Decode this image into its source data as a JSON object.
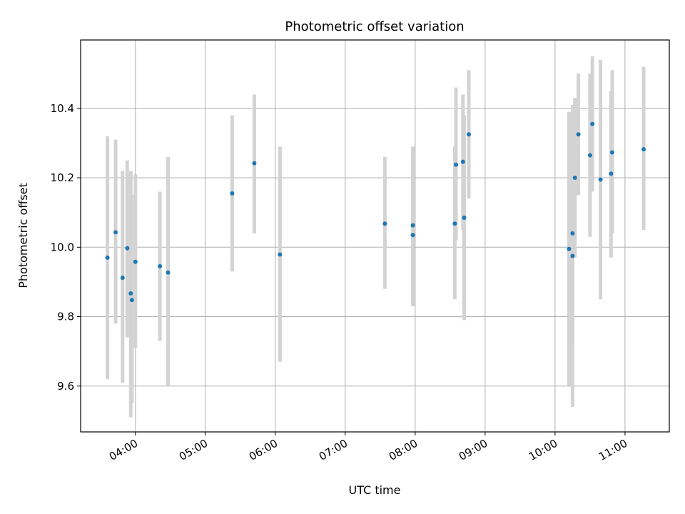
{
  "chart_data": {
    "type": "scatter",
    "title": "Photometric offset variation",
    "xlabel": "UTC time",
    "ylabel": "Photometric offset",
    "xlim": [
      "03:13",
      "11:38"
    ],
    "ylim": [
      9.468,
      10.597
    ],
    "x_ticks": [
      "04:00",
      "05:00",
      "06:00",
      "07:00",
      "08:00",
      "09:00",
      "10:00",
      "11:00"
    ],
    "y_ticks": [
      9.6,
      9.8,
      10.0,
      10.2,
      10.4
    ],
    "grid": true,
    "error_bar_color": "#d3d3d3",
    "marker_color": "#1f77b4",
    "points": [
      {
        "x": "03:36",
        "y": 9.97,
        "lo": 9.62,
        "hi": 10.32
      },
      {
        "x": "03:43",
        "y": 10.043,
        "lo": 9.78,
        "hi": 10.31
      },
      {
        "x": "03:49",
        "y": 9.912,
        "lo": 9.61,
        "hi": 10.22
      },
      {
        "x": "03:53",
        "y": 9.997,
        "lo": 9.74,
        "hi": 10.25
      },
      {
        "x": "03:56",
        "y": 9.867,
        "lo": 9.51,
        "hi": 10.22
      },
      {
        "x": "03:57",
        "y": 9.848,
        "lo": 9.55,
        "hi": 10.15
      },
      {
        "x": "04:00",
        "y": 9.958,
        "lo": 9.71,
        "hi": 10.21
      },
      {
        "x": "04:21",
        "y": 9.945,
        "lo": 9.73,
        "hi": 10.16
      },
      {
        "x": "04:28",
        "y": 9.927,
        "lo": 9.6,
        "hi": 10.26
      },
      {
        "x": "05:23",
        "y": 10.155,
        "lo": 9.93,
        "hi": 10.38
      },
      {
        "x": "05:42",
        "y": 10.242,
        "lo": 10.04,
        "hi": 10.44
      },
      {
        "x": "06:04",
        "y": 9.979,
        "lo": 9.67,
        "hi": 10.29
      },
      {
        "x": "07:34",
        "y": 10.068,
        "lo": 9.88,
        "hi": 10.26
      },
      {
        "x": "07:58",
        "y": 10.063,
        "lo": 9.84,
        "hi": 10.29
      },
      {
        "x": "07:58",
        "y": 10.035,
        "lo": 9.83,
        "hi": 10.24
      },
      {
        "x": "08:34",
        "y": 10.068,
        "lo": 9.85,
        "hi": 10.29
      },
      {
        "x": "08:35",
        "y": 10.238,
        "lo": 10.02,
        "hi": 10.46
      },
      {
        "x": "08:41",
        "y": 10.246,
        "lo": 10.05,
        "hi": 10.44
      },
      {
        "x": "08:42",
        "y": 10.085,
        "lo": 9.79,
        "hi": 10.38
      },
      {
        "x": "08:46",
        "y": 10.325,
        "lo": 10.14,
        "hi": 10.51
      },
      {
        "x": "10:12",
        "y": 9.995,
        "lo": 9.6,
        "hi": 10.39
      },
      {
        "x": "10:15",
        "y": 10.04,
        "lo": 9.73,
        "hi": 10.41
      },
      {
        "x": "10:15",
        "y": 9.975,
        "lo": 9.54,
        "hi": 10.41
      },
      {
        "x": "10:17",
        "y": 10.2,
        "lo": 9.97,
        "hi": 10.43
      },
      {
        "x": "10:20",
        "y": 10.325,
        "lo": 10.15,
        "hi": 10.5
      },
      {
        "x": "10:30",
        "y": 10.265,
        "lo": 10.03,
        "hi": 10.5
      },
      {
        "x": "10:32",
        "y": 10.355,
        "lo": 10.16,
        "hi": 10.55
      },
      {
        "x": "10:39",
        "y": 10.195,
        "lo": 9.85,
        "hi": 10.54
      },
      {
        "x": "10:48",
        "y": 10.212,
        "lo": 9.97,
        "hi": 10.45
      },
      {
        "x": "10:49",
        "y": 10.273,
        "lo": 10.04,
        "hi": 10.51
      },
      {
        "x": "11:16",
        "y": 10.282,
        "lo": 10.05,
        "hi": 10.52
      }
    ]
  }
}
